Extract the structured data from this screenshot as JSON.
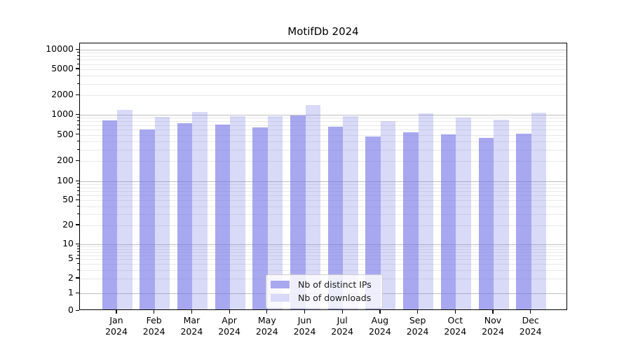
{
  "chart_data": {
    "type": "bar",
    "title": "MotifDb 2024",
    "y_scale": "symlog",
    "grid": true,
    "ylim": [
      0,
      13000
    ],
    "y_axis_ticks": [
      "0",
      "1",
      "2",
      "5",
      "10",
      "20",
      "50",
      "100",
      "200",
      "500",
      "1000",
      "2000",
      "5000",
      "10000"
    ],
    "x_tick_year": "2024",
    "x_tick_months": [
      "Jan",
      "Feb",
      "Mar",
      "Apr",
      "May",
      "Jun",
      "Jul",
      "Aug",
      "Sep",
      "Oct",
      "Nov",
      "Dec"
    ],
    "categories": [
      "Jan 2024",
      "Feb 2024",
      "Mar 2024",
      "Apr 2024",
      "May 2024",
      "Jun 2024",
      "Jul 2024",
      "Aug 2024",
      "Sep 2024",
      "Oct 2024",
      "Nov 2024",
      "Dec 2024"
    ],
    "series": [
      {
        "name": "Nb of distinct IPs",
        "swatch_color": "#a8a8f0",
        "values": [
          790,
          570,
          720,
          680,
          620,
          920,
          630,
          450,
          520,
          480,
          430,
          500
        ]
      },
      {
        "name": "Nb of downloads",
        "swatch_color": "#d9d9f8",
        "values": [
          1130,
          880,
          1040,
          900,
          900,
          1350,
          910,
          770,
          1000,
          870,
          800,
          1030
        ]
      }
    ],
    "legend": {
      "position": "lower center",
      "entries": [
        "Nb of distinct IPs",
        "Nb of downloads"
      ]
    }
  },
  "colors": {
    "bar_base_rgb": "115,115,230",
    "series_alpha": [
      0.62,
      0.27
    ],
    "major_grid": "#c0c0c0",
    "minor_grid": "#e9e9e9",
    "spine": "#000000"
  }
}
